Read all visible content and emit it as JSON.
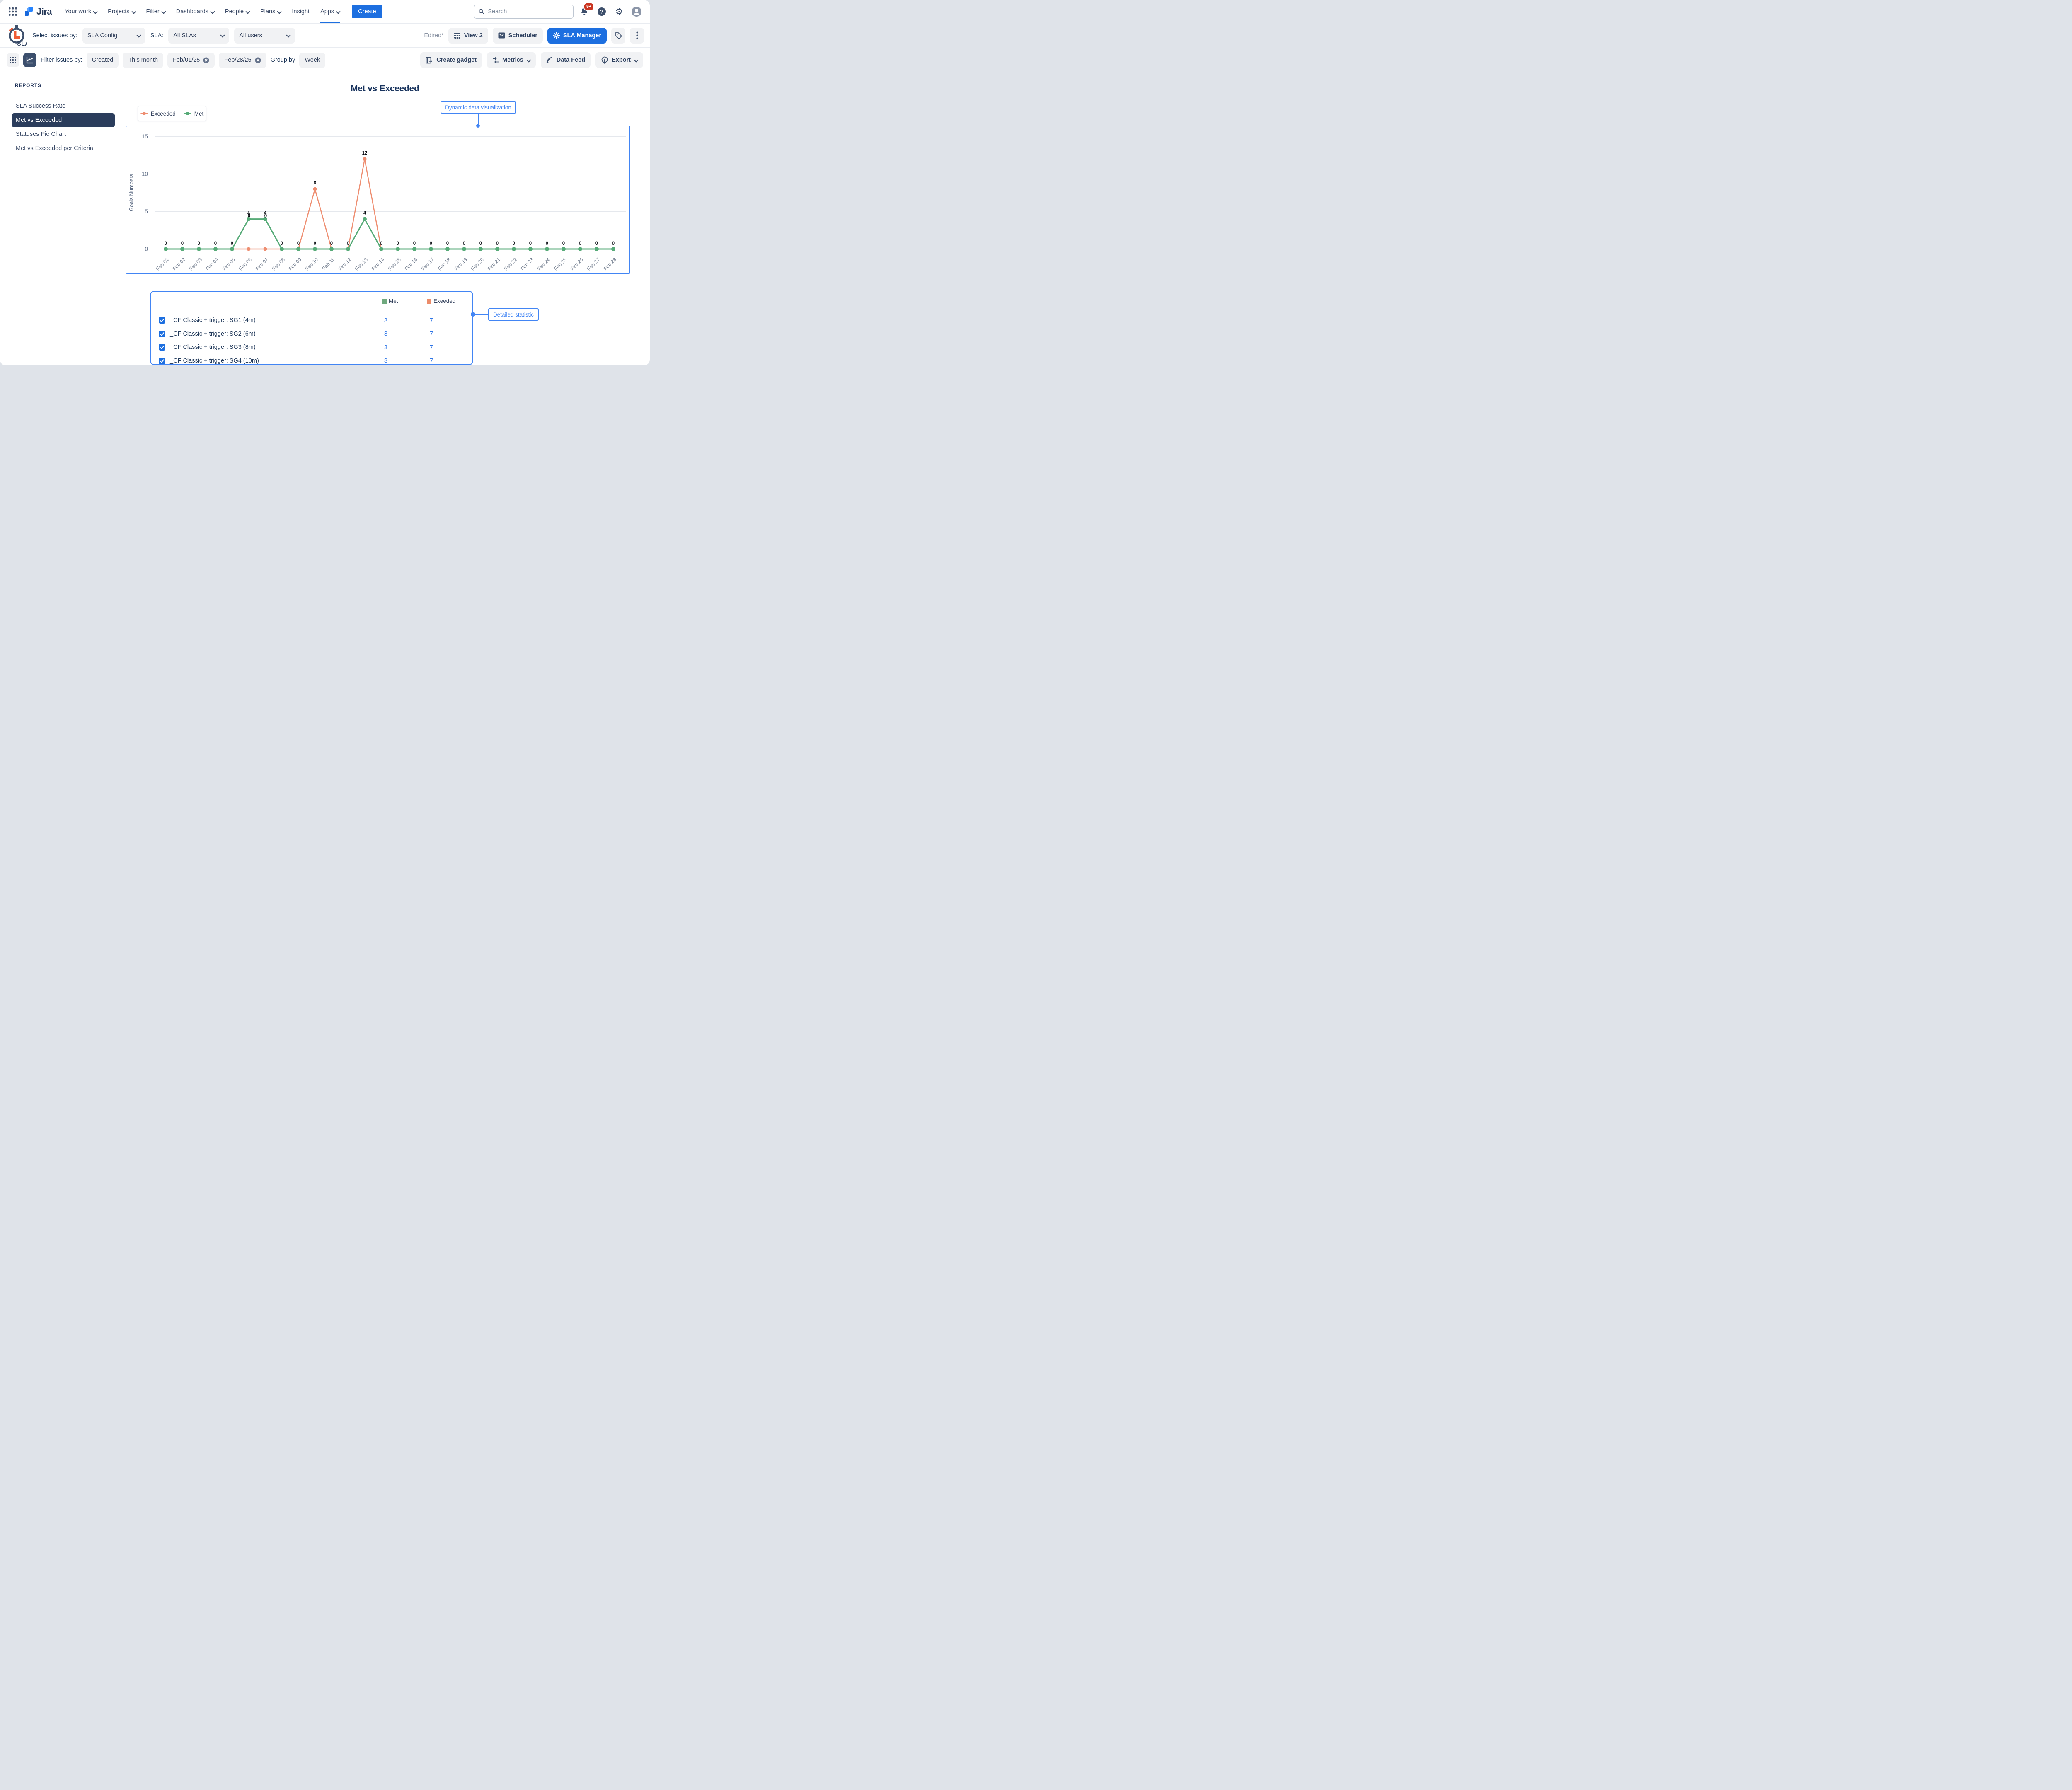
{
  "colors": {
    "primary_blue": "#1d6fe0",
    "annotation_blue": "#4285f4",
    "met_green": "#57ab78",
    "met_green_square": "#6fa97e",
    "exceeded_orange": "#ee8e71",
    "exceeded_orange_square": "#ec8c6a",
    "badge_red": "#ca3521",
    "sidebar_selected": "#2b3d5c"
  },
  "topnav": {
    "logo_text": "Jira",
    "items": [
      {
        "label": "Your work",
        "chevron": true,
        "active": false
      },
      {
        "label": "Projects",
        "chevron": true,
        "active": false
      },
      {
        "label": "Filter",
        "chevron": true,
        "active": false
      },
      {
        "label": "Dashboards",
        "chevron": true,
        "active": false
      },
      {
        "label": "People",
        "chevron": true,
        "active": false
      },
      {
        "label": "Plans",
        "chevron": true,
        "active": false
      },
      {
        "label": "Insight",
        "chevron": false,
        "active": false
      },
      {
        "label": "Apps",
        "chevron": true,
        "active": true
      }
    ],
    "create_label": "Create",
    "search_placeholder": "Search",
    "notification_count": "9+"
  },
  "toolbar": {
    "logo_text": "SLA",
    "select_issues_label": "Select issues by:",
    "issues_source_value": "SLA Config",
    "sla_label": "SLA:",
    "sla_value": "All SLAs",
    "users_value": "All users",
    "edited_indicator": "Edired*",
    "view_button": "View 2",
    "scheduler_button": "Scheduler",
    "sla_manager_button": "SLA Manager"
  },
  "filterbar": {
    "label": "Filter issues by:",
    "chips": [
      {
        "label": "Created",
        "removable": false
      },
      {
        "label": "This month",
        "removable": false
      },
      {
        "label": "Feb/01/25",
        "removable": true
      },
      {
        "label": "Feb/28/25",
        "removable": true
      }
    ],
    "group_by_label": "Group by",
    "group_by_value": "Week",
    "actions": [
      {
        "label": "Create gadget",
        "icon": "gadget-icon",
        "chevron": false
      },
      {
        "label": "Metrics",
        "icon": "sliders-icon",
        "chevron": true
      },
      {
        "label": "Data Feed",
        "icon": "rss-icon",
        "chevron": false
      },
      {
        "label": "Export",
        "icon": "export-icon",
        "chevron": true
      }
    ]
  },
  "sidebar": {
    "heading": "REPORTS",
    "items": [
      {
        "label": "SLA Success Rate",
        "active": false
      },
      {
        "label": "Met vs Exceeded",
        "active": true
      },
      {
        "label": "Statuses Pie Chart",
        "active": false
      },
      {
        "label": "Met vs Exceeded per Criteria",
        "active": false
      }
    ]
  },
  "page_title": "Met vs Exceeded",
  "annotations": {
    "chart": "Dynamic data visualization",
    "table": "Detailed statistic"
  },
  "chart_data": {
    "type": "line",
    "title": "Met vs Exceeded",
    "ylabel": "Goals Numbers",
    "ylim": [
      0,
      15
    ],
    "yticks": [
      0,
      5,
      10,
      15
    ],
    "grid": true,
    "legend_position": "top-left",
    "x": [
      "Feb 01",
      "Feb 02",
      "Feb 03",
      "Feb 04",
      "Feb 05",
      "Feb 06",
      "Feb 07",
      "Feb 08",
      "Feb 09",
      "Feb 10",
      "Feb 11",
      "Feb 12",
      "Feb 13",
      "Feb 14",
      "Feb 15",
      "Feb 16",
      "Feb 17",
      "Feb 18",
      "Feb 19",
      "Feb 20",
      "Feb 21",
      "Feb 22",
      "Feb 23",
      "Feb 24",
      "Feb 25",
      "Feb 26",
      "Feb 27",
      "Feb 28"
    ],
    "series": [
      {
        "name": "Exceeded",
        "color": "#ee8e71",
        "values": [
          0,
          0,
          0,
          0,
          0,
          0,
          0,
          0,
          0,
          8,
          0,
          0,
          12,
          0,
          0,
          0,
          0,
          0,
          0,
          0,
          0,
          0,
          0,
          0,
          0,
          0,
          0,
          0
        ]
      },
      {
        "name": "Met",
        "color": "#57ab78",
        "values": [
          0,
          0,
          0,
          0,
          0,
          4,
          4,
          0,
          0,
          0,
          0,
          0,
          4,
          0,
          0,
          0,
          0,
          0,
          0,
          0,
          0,
          0,
          0,
          0,
          0,
          0,
          0,
          0
        ]
      }
    ]
  },
  "summary_table": {
    "legend": [
      {
        "label": "Met",
        "color": "#6fa97e"
      },
      {
        "label": "Exeeded",
        "color": "#ec8c6a"
      }
    ],
    "rows": [
      {
        "checked": true,
        "label": "!_CF Classic + trigger: SG1 (4m)",
        "met": "3",
        "exceeded": "7"
      },
      {
        "checked": true,
        "label": "!_CF Classic + trigger: SG2 (6m)",
        "met": "3",
        "exceeded": "7"
      },
      {
        "checked": true,
        "label": "!_CF Classic + trigger: SG3 (8m)",
        "met": "3",
        "exceeded": "7"
      },
      {
        "checked": true,
        "label": "!_CF Classic + trigger: SG4 (10m)",
        "met": "3",
        "exceeded": "7"
      }
    ]
  }
}
